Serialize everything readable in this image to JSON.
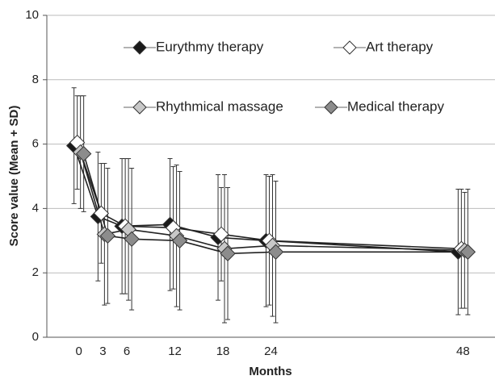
{
  "chart_data": {
    "type": "line",
    "x_label": "Months",
    "y_label": "Score value (Mean + SD)",
    "x": [
      0,
      3,
      6,
      12,
      18,
      24,
      48
    ],
    "xlim": [
      -4,
      52
    ],
    "xticks": [
      0,
      3,
      6,
      12,
      18,
      24,
      48
    ],
    "ylim": [
      0,
      10
    ],
    "yticks": [
      0,
      2,
      4,
      6,
      8,
      10
    ],
    "grid": true,
    "series": [
      {
        "name": "Eurythmy therapy",
        "color": "#1a1a1a",
        "values": [
          5.95,
          3.75,
          3.45,
          3.5,
          3.1,
          3.0,
          2.65
        ],
        "errors": [
          1.8,
          2.0,
          2.1,
          2.05,
          1.95,
          2.05,
          1.95
        ]
      },
      {
        "name": "Art therapy",
        "color": "#ffffff",
        "values": [
          6.05,
          3.85,
          3.45,
          3.4,
          3.2,
          3.0,
          2.75
        ],
        "errors": [
          1.45,
          1.55,
          2.1,
          1.9,
          1.45,
          2.0,
          1.85
        ]
      },
      {
        "name": "Rhythmical massage",
        "color": "#c8c8c8",
        "values": [
          5.75,
          3.2,
          3.35,
          3.15,
          2.75,
          2.85,
          2.7
        ],
        "errors": [
          1.75,
          2.2,
          2.2,
          2.2,
          2.3,
          2.2,
          1.8
        ]
      },
      {
        "name": "Medical therapy",
        "color": "#8c8c8c",
        "values": [
          5.7,
          3.15,
          3.05,
          3.0,
          2.6,
          2.65,
          2.65
        ],
        "errors": [
          1.8,
          2.1,
          2.2,
          2.15,
          2.05,
          2.2,
          1.95
        ]
      }
    ]
  }
}
